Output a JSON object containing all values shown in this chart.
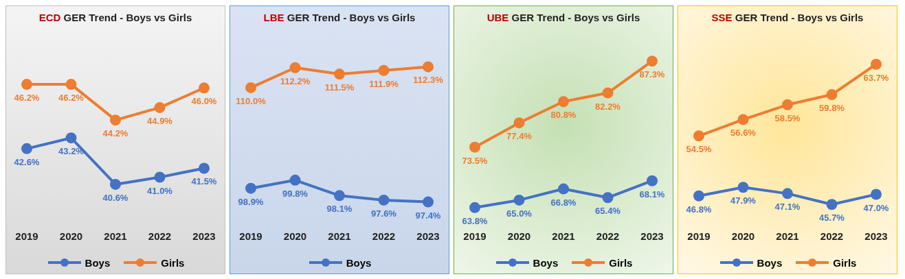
{
  "chart_data": [
    {
      "type": "line",
      "title": "ECD GER Trend - Boys vs Girls",
      "categories": [
        "2019",
        "2020",
        "2021",
        "2022",
        "2023"
      ],
      "legend": "bottom",
      "marker": "circle",
      "series": [
        {
          "name": "Boys",
          "color": "#4472c4",
          "values": [
            42.6,
            43.2,
            40.6,
            41.0,
            41.5
          ],
          "value_labels": [
            "42.6%",
            "43.2%",
            "40.6%",
            "41.0%",
            "41.5%"
          ]
        },
        {
          "name": "Girls",
          "color": "#ed7d31",
          "values": [
            46.2,
            46.2,
            44.2,
            44.9,
            46.0
          ],
          "value_labels": [
            "46.2%",
            "46.2%",
            "44.2%",
            "44.9%",
            "46.0%"
          ]
        }
      ]
    },
    {
      "type": "line",
      "title": "LBE GER Trend - Boys vs Girls",
      "categories": [
        "2019",
        "2020",
        "2021",
        "2022",
        "2023"
      ],
      "legend": "bottom",
      "marker": "circle",
      "series": [
        {
          "name": "Boys",
          "color": "#4472c4",
          "values": [
            98.9,
            99.8,
            98.1,
            97.6,
            97.4
          ],
          "value_labels": [
            "98.9%",
            "99.8%",
            "98.1%",
            "97.6%",
            "97.4%"
          ]
        },
        {
          "color": "#ed7d31",
          "values": [
            110.0,
            112.2,
            111.5,
            111.9,
            112.3
          ],
          "value_labels": [
            "110.0%",
            "112.2%",
            "111.5%",
            "111.9%",
            "112.3%"
          ]
        }
      ]
    },
    {
      "type": "line",
      "title": "UBE GER Trend - Boys vs Girls",
      "categories": [
        "2019",
        "2020",
        "2021",
        "2022",
        "2023"
      ],
      "legend": "bottom",
      "marker": "circle",
      "series": [
        {
          "name": "Boys",
          "color": "#4472c4",
          "values": [
            63.8,
            65.0,
            66.8,
            65.4,
            68.1
          ],
          "value_labels": [
            "63.8%",
            "65.0%",
            "66.8%",
            "65.4%",
            "68.1%"
          ]
        },
        {
          "name": "Girls",
          "color": "#ed7d31",
          "values": [
            73.5,
            77.4,
            80.8,
            82.2,
            87.3
          ],
          "value_labels": [
            "73.5%",
            "77.4%",
            "80.8%",
            "82.2%",
            "87.3%"
          ]
        }
      ]
    },
    {
      "type": "line",
      "title": "SSE GER Trend - Boys vs Girls",
      "categories": [
        "2019",
        "2020",
        "2021",
        "2022",
        "2023"
      ],
      "legend": "bottom",
      "marker": "circle",
      "series": [
        {
          "name": "Boys",
          "color": "#4472c4",
          "values": [
            46.8,
            47.9,
            47.1,
            45.7,
            47.0
          ],
          "value_labels": [
            "46.8%",
            "47.9%",
            "47.1%",
            "45.7%",
            "47.0%"
          ]
        },
        {
          "name": "Girls",
          "color": "#ed7d31",
          "values": [
            54.5,
            56.6,
            58.5,
            59.8,
            63.7
          ],
          "value_labels": [
            "54.5%",
            "56.6%",
            "58.5%",
            "59.8%",
            "63.7%"
          ]
        }
      ]
    }
  ]
}
